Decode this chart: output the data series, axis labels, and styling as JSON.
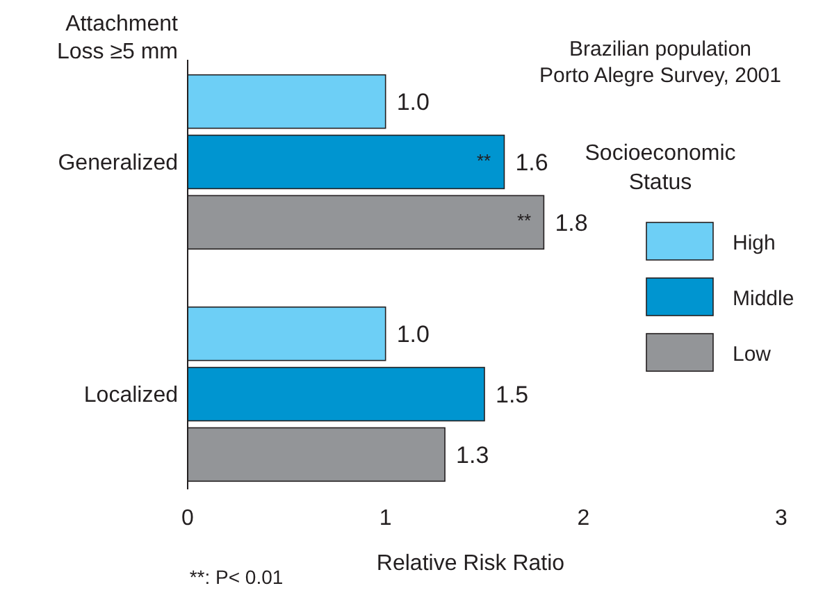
{
  "chart_data": {
    "type": "bar",
    "orientation": "horizontal",
    "title": "Brazilian population",
    "subtitle": "Porto Alegre Survey, 2001",
    "ylabel": "Attachment Loss ≥5 mm",
    "xlabel": "Relative Risk Ratio",
    "legend_title": "Socioeconomic Status",
    "categories": [
      "Generalized",
      "Localized"
    ],
    "series": [
      {
        "name": "High",
        "color": "#6dcff6",
        "values": [
          1.0,
          1.0
        ],
        "value_labels": [
          "1.0",
          "1.0"
        ]
      },
      {
        "name": "Middle",
        "color": "#0095d0",
        "values": [
          1.6,
          1.5
        ],
        "value_labels": [
          "1.6",
          "1.5"
        ]
      },
      {
        "name": "Low",
        "color": "#939598",
        "values": [
          1.8,
          1.3
        ],
        "value_labels": [
          "1.8",
          "1.3"
        ]
      }
    ],
    "xlim": [
      0,
      3
    ],
    "xticks": [
      0,
      1,
      2,
      3
    ],
    "legend": "right",
    "grid": false,
    "annotations": [
      "**",
      "**",
      "**: P< 0.01"
    ]
  }
}
